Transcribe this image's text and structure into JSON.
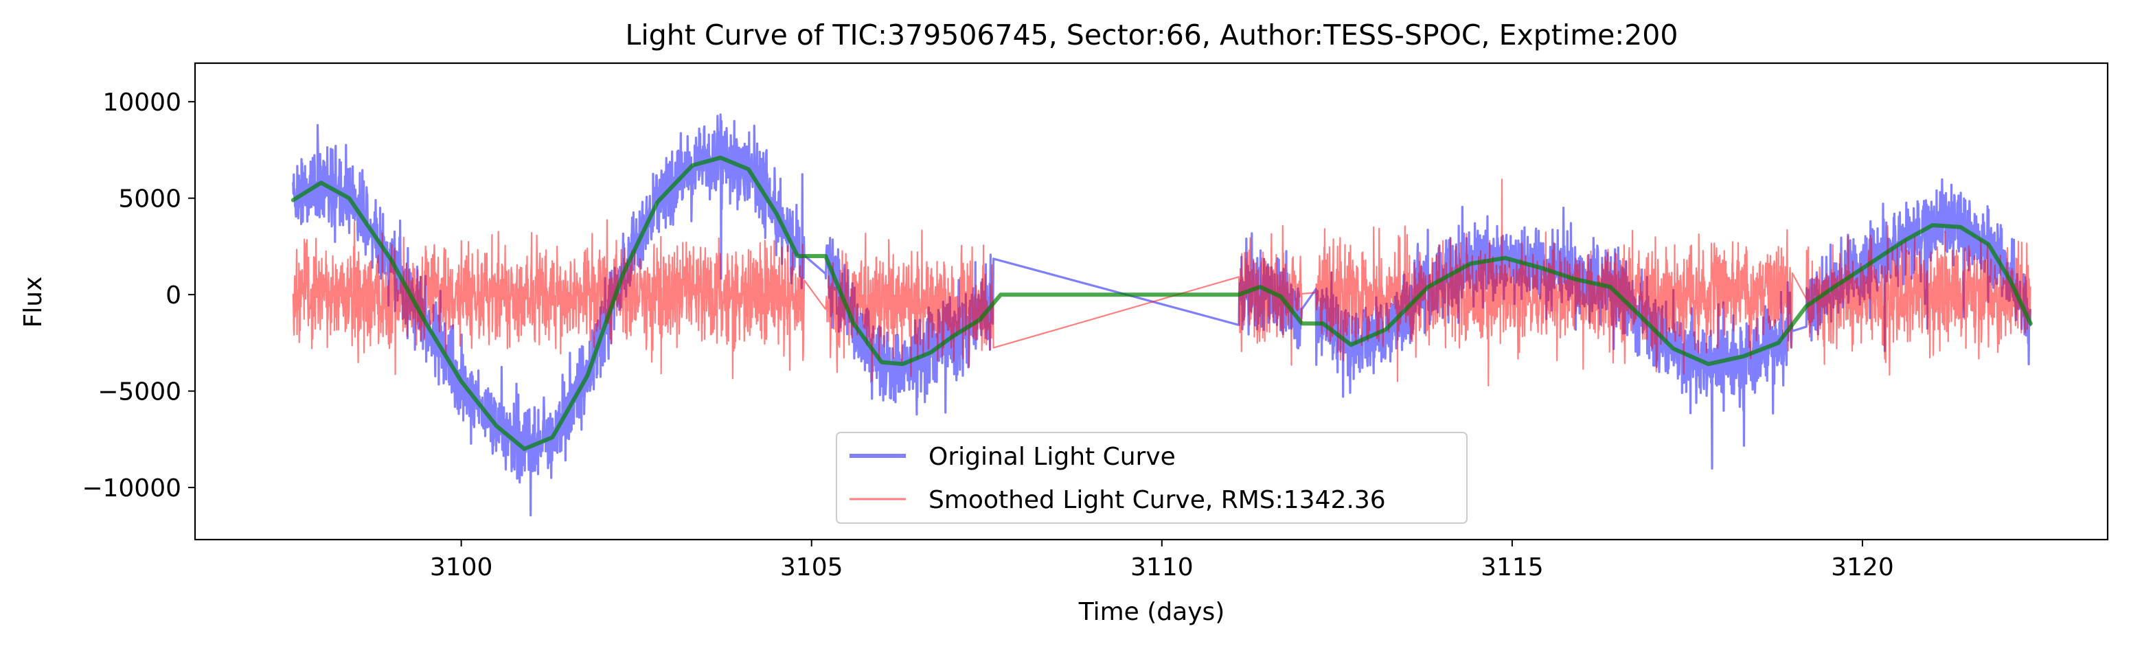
{
  "chart_data": {
    "type": "line",
    "title": "Light Curve of TIC:379506745, Sector:66, Author:TESS-SPOC, Exptime:200",
    "xlabel": "Time (days)",
    "ylabel": "Flux",
    "xlim": [
      3096.2,
      3123.5
    ],
    "ylim": [
      -12700,
      12000
    ],
    "x_ticks": [
      3100,
      3105,
      3110,
      3115,
      3120
    ],
    "x_tick_labels": [
      "3100",
      "3105",
      "3110",
      "3115",
      "3120"
    ],
    "y_ticks": [
      -10000,
      -5000,
      0,
      5000,
      10000
    ],
    "y_tick_labels": [
      "−10000",
      "−5000",
      "0",
      "5000",
      "10000"
    ],
    "grid": false,
    "legend_position": "lower-center",
    "segments": [
      {
        "start": 3097.6,
        "end": 3104.9,
        "offset": 0
      },
      {
        "start": 3105.2,
        "end": 3107.6,
        "offset": -3200
      },
      {
        "start": 3111.1,
        "end": 3112.0,
        "offset": -200
      },
      {
        "start": 3112.2,
        "end": 3119.0,
        "offset": 0
      },
      {
        "start": 3119.2,
        "end": 3122.4,
        "offset": 0
      }
    ],
    "series": [
      {
        "name": "Original Light Curve",
        "color": "#0000ff",
        "opacity": 0.5,
        "legend": true,
        "noise_sd": 1300
      },
      {
        "name": "Smoothed Light Curve, RMS:1342.36",
        "color": "#ff0000",
        "opacity": 0.5,
        "legend": true,
        "noise_sd": 1342.36
      },
      {
        "name": "Trend",
        "color": "#008000",
        "opacity": 0.7,
        "legend": false,
        "x": [
          3097.6,
          3098.0,
          3098.4,
          3099.0,
          3099.5,
          3100.0,
          3100.5,
          3100.9,
          3101.3,
          3101.8,
          3102.3,
          3102.8,
          3103.3,
          3103.7,
          3104.1,
          3104.5,
          3104.8,
          3105.2,
          3105.6,
          3106.0,
          3106.3,
          3106.7,
          3107.0,
          3107.4,
          3107.7,
          3111.1,
          3111.4,
          3111.7,
          3112.0,
          3112.3,
          3112.7,
          3113.2,
          3113.8,
          3114.4,
          3114.9,
          3115.4,
          3115.9,
          3116.4,
          3116.8,
          3117.3,
          3117.8,
          3118.3,
          3118.8,
          3119.2,
          3119.6,
          3120.1,
          3120.6,
          3121.0,
          3121.4,
          3121.8,
          3122.1,
          3122.4
        ],
        "y": [
          4900,
          5800,
          5000,
          1800,
          -1500,
          -4500,
          -6800,
          -8000,
          -7400,
          -4200,
          1000,
          4800,
          6700,
          7100,
          6500,
          4200,
          2000,
          2000,
          -1500,
          -3500,
          -3600,
          -3000,
          -2200,
          -1300,
          0,
          0,
          400,
          -100,
          -1500,
          -1500,
          -2600,
          -1800,
          400,
          1600,
          1900,
          1400,
          800,
          400,
          -1000,
          -2800,
          -3600,
          -3200,
          -2500,
          -600,
          400,
          1600,
          2800,
          3600,
          3500,
          2600,
          800,
          -1500
        ]
      }
    ]
  }
}
